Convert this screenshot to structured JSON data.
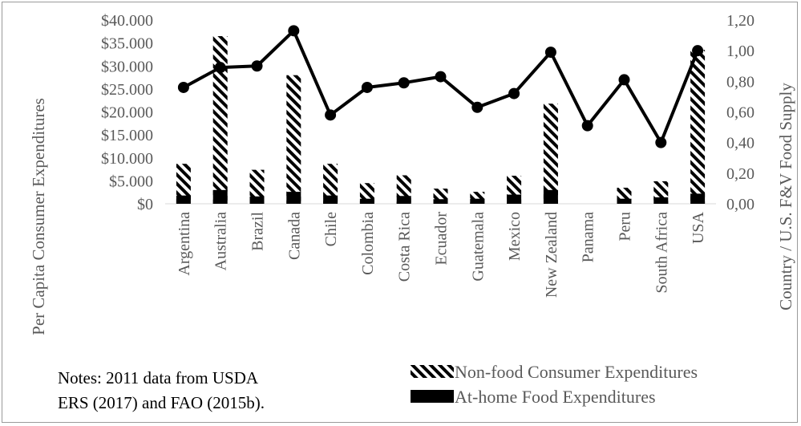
{
  "chart_data": {
    "type": "bar",
    "categories": [
      "Argentina",
      "Australia",
      "Brazil",
      "Canada",
      "Chile",
      "Colombia",
      "Costa Rica",
      "Ecuador",
      "Guatemala",
      "Mexico",
      "New Zealand",
      "Panama",
      "Peru",
      "South Africa",
      "USA"
    ],
    "series": [
      {
        "name": "Non-food Consumer Expenditures",
        "type": "bar",
        "axis": "left",
        "pattern": "diagonal-hatch",
        "values": [
          8700,
          36500,
          7400,
          28000,
          8700,
          4500,
          6200,
          3300,
          2600,
          6100,
          21800,
          0,
          3500,
          4900,
          33500
        ]
      },
      {
        "name": "At-home Food Expenditures",
        "type": "bar",
        "axis": "left",
        "color": "#000000",
        "values": [
          1800,
          3000,
          1600,
          2600,
          1800,
          1100,
          1700,
          1000,
          1100,
          2000,
          3000,
          0,
          1100,
          1400,
          2200
        ]
      },
      {
        "name": "Country / U.S. F&V Food Supply",
        "type": "line",
        "axis": "right",
        "color": "#000000",
        "values": [
          0.76,
          0.89,
          0.9,
          1.13,
          0.58,
          0.76,
          0.79,
          0.83,
          0.63,
          0.72,
          0.99,
          0.51,
          0.81,
          0.4,
          1.0
        ]
      }
    ],
    "y_left": {
      "ticks": [
        "$40.000",
        "$35.000",
        "$30.000",
        "$25.000",
        "$20.000",
        "$15.000",
        "$10.000",
        "$5.000",
        "$0"
      ],
      "ylim": [
        0,
        40000
      ]
    },
    "y_right": {
      "ticks": [
        "1,20",
        "1,00",
        "0,80",
        "0,60",
        "0,40",
        "0,20",
        "0,00"
      ],
      "ylim": [
        0,
        1.2
      ]
    },
    "ylabel_left": "Per Capita Consumer Expenditures",
    "ylabel_right": "Country / U.S. F&V Food Supply",
    "legend_position": "bottom-right",
    "grid": false
  },
  "notes": {
    "line1": "Notes: 2011 data from USDA",
    "line2": "ERS (2017) and FAO (2015b)."
  }
}
